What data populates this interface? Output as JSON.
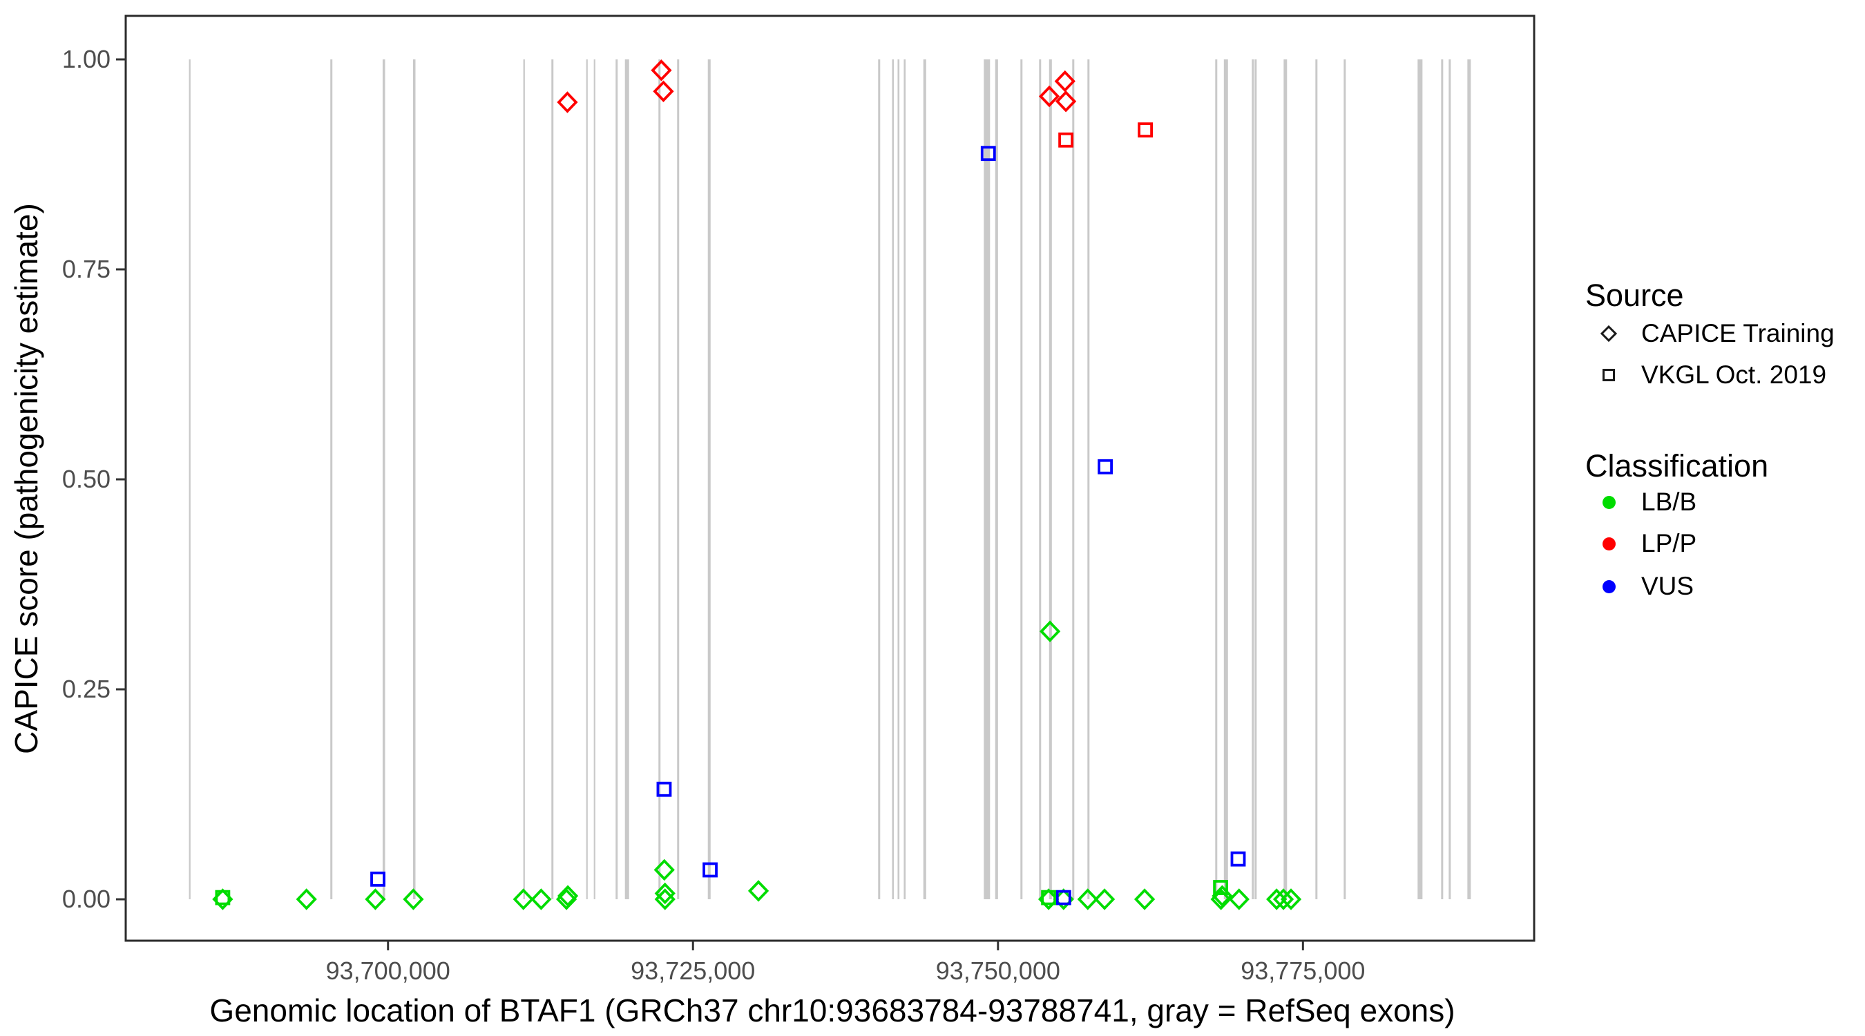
{
  "chart_data": {
    "type": "scatter",
    "title": "",
    "x_axis": {
      "label": "Genomic location of BTAF1 (GRCh37 chr10:93683784-93788741, gray = RefSeq exons)",
      "domain": [
        93678500,
        93793950
      ],
      "ticks": [
        {
          "value": 93700000,
          "label": "93,700,000"
        },
        {
          "value": 93725000,
          "label": "93,725,000"
        },
        {
          "value": 93750000,
          "label": "93,750,000"
        },
        {
          "value": 93775000,
          "label": "93,775,000"
        }
      ]
    },
    "y_axis": {
      "label": "CAPICE score (pathogenicity estimate)",
      "domain": [
        -0.0493,
        1.0518
      ],
      "ticks": [
        {
          "value": 0.0,
          "label": "0.00"
        },
        {
          "value": 0.25,
          "label": "0.25"
        },
        {
          "value": 0.5,
          "label": "0.50"
        },
        {
          "value": 0.75,
          "label": "0.75"
        },
        {
          "value": 1.0,
          "label": "1.00"
        }
      ]
    },
    "legend": {
      "source": {
        "title": "Source",
        "items": [
          {
            "label": "CAPICE Training",
            "shape": "diamond"
          },
          {
            "label": "VKGL Oct. 2019",
            "shape": "square"
          }
        ]
      },
      "classification": {
        "title": "Classification",
        "items": [
          {
            "label": "LB/B",
            "color": "#00DC00"
          },
          {
            "label": "LP/P",
            "color": "#FF0000"
          },
          {
            "label": "VUS",
            "color": "#0000FF"
          }
        ]
      }
    },
    "colors": {
      "exon": "#C9C9C9",
      "panel_border": "#2B2B2B",
      "tick": "#333333",
      "tick_label": "#4D4D4D",
      "legend_glyph": "#1A1A1A"
    },
    "exons": [
      {
        "position": 93683749,
        "width_bp": 130
      },
      {
        "position": 93695357,
        "width_bp": 170
      },
      {
        "position": 93699660,
        "width_bp": 200
      },
      {
        "position": 93702152,
        "width_bp": 200
      },
      {
        "position": 93711155,
        "width_bp": 130
      },
      {
        "position": 93713477,
        "width_bp": 170
      },
      {
        "position": 93716308,
        "width_bp": 120
      },
      {
        "position": 93716931,
        "width_bp": 120
      },
      {
        "position": 93718743,
        "width_bp": 170
      },
      {
        "position": 93719592,
        "width_bp": 340
      },
      {
        "position": 93722254,
        "width_bp": 170
      },
      {
        "position": 93723782,
        "width_bp": 170
      },
      {
        "position": 93726330,
        "width_bp": 230
      },
      {
        "position": 93740260,
        "width_bp": 170
      },
      {
        "position": 93741393,
        "width_bp": 150
      },
      {
        "position": 93741846,
        "width_bp": 150
      },
      {
        "position": 93742355,
        "width_bp": 150
      },
      {
        "position": 93743997,
        "width_bp": 230
      },
      {
        "position": 93749094,
        "width_bp": 510
      },
      {
        "position": 93749887,
        "width_bp": 230
      },
      {
        "position": 93751925,
        "width_bp": 170
      },
      {
        "position": 93753454,
        "width_bp": 170
      },
      {
        "position": 93754303,
        "width_bp": 230
      },
      {
        "position": 93756172,
        "width_bp": 170
      },
      {
        "position": 93757418,
        "width_bp": 170
      },
      {
        "position": 93767893,
        "width_bp": 170
      },
      {
        "position": 93768686,
        "width_bp": 340
      },
      {
        "position": 93770894,
        "width_bp": 170
      },
      {
        "position": 93771121,
        "width_bp": 170
      },
      {
        "position": 93773556,
        "width_bp": 280
      },
      {
        "position": 93776104,
        "width_bp": 170
      },
      {
        "position": 93778425,
        "width_bp": 170
      },
      {
        "position": 93784598,
        "width_bp": 400
      },
      {
        "position": 93786410,
        "width_bp": 170
      },
      {
        "position": 93787033,
        "width_bp": 170
      },
      {
        "position": 93788618,
        "width_bp": 280
      }
    ],
    "points": [
      {
        "position": 93714706,
        "score": 0.949,
        "source": "CAPICE Training",
        "classification": "LP/P",
        "shape": "diamond"
      },
      {
        "position": 93722407,
        "score": 0.987,
        "source": "CAPICE Training",
        "classification": "LP/P",
        "shape": "diamond"
      },
      {
        "position": 93722577,
        "score": 0.962,
        "source": "CAPICE Training",
        "classification": "LP/P",
        "shape": "diamond"
      },
      {
        "position": 93754207,
        "score": 0.956,
        "source": "CAPICE Training",
        "classification": "LP/P",
        "shape": "diamond"
      },
      {
        "position": 93755492,
        "score": 0.974,
        "source": "CAPICE Training",
        "classification": "LP/P",
        "shape": "diamond"
      },
      {
        "position": 93755566,
        "score": 0.95,
        "source": "CAPICE Training",
        "classification": "LP/P",
        "shape": "diamond"
      },
      {
        "position": 93686449,
        "score": 0.0,
        "source": "CAPICE Training",
        "classification": "LB/B",
        "shape": "diamond"
      },
      {
        "position": 93693318,
        "score": 0.0,
        "source": "CAPICE Training",
        "classification": "LB/B",
        "shape": "diamond"
      },
      {
        "position": 93698964,
        "score": 0.0,
        "source": "CAPICE Training",
        "classification": "LB/B",
        "shape": "diamond"
      },
      {
        "position": 93702078,
        "score": 0.0,
        "source": "CAPICE Training",
        "classification": "LB/B",
        "shape": "diamond"
      },
      {
        "position": 93711098,
        "score": 0.0,
        "source": "CAPICE Training",
        "classification": "LB/B",
        "shape": "diamond"
      },
      {
        "position": 93712553,
        "score": 0.0,
        "source": "CAPICE Training",
        "classification": "LB/B",
        "shape": "diamond"
      },
      {
        "position": 93714630,
        "score": 0.0,
        "source": "CAPICE Training",
        "classification": "LB/B",
        "shape": "diamond"
      },
      {
        "position": 93714740,
        "score": 0.004,
        "source": "CAPICE Training",
        "classification": "LB/B",
        "shape": "diamond"
      },
      {
        "position": 93722650,
        "score": 0.035,
        "source": "CAPICE Training",
        "classification": "LB/B",
        "shape": "diamond"
      },
      {
        "position": 93722707,
        "score": 0.007,
        "source": "CAPICE Training",
        "classification": "LB/B",
        "shape": "diamond"
      },
      {
        "position": 93722707,
        "score": 0.0,
        "source": "CAPICE Training",
        "classification": "LB/B",
        "shape": "diamond"
      },
      {
        "position": 93730368,
        "score": 0.01,
        "source": "CAPICE Training",
        "classification": "LB/B",
        "shape": "diamond"
      },
      {
        "position": 93754151,
        "score": 0.0,
        "source": "CAPICE Training",
        "classification": "LB/B",
        "shape": "diamond"
      },
      {
        "position": 93754264,
        "score": 0.319,
        "source": "CAPICE Training",
        "classification": "LB/B",
        "shape": "diamond"
      },
      {
        "position": 93755379,
        "score": 0.0,
        "source": "CAPICE Training",
        "classification": "LB/B",
        "shape": "diamond"
      },
      {
        "position": 93757361,
        "score": 0.0,
        "source": "CAPICE Training",
        "classification": "LB/B",
        "shape": "diamond"
      },
      {
        "position": 93758737,
        "score": 0.0,
        "source": "CAPICE Training",
        "classification": "LB/B",
        "shape": "diamond"
      },
      {
        "position": 93762021,
        "score": 0.0,
        "source": "CAPICE Training",
        "classification": "LB/B",
        "shape": "diamond"
      },
      {
        "position": 93768280,
        "score": 0.0,
        "source": "CAPICE Training",
        "classification": "LB/B",
        "shape": "diamond"
      },
      {
        "position": 93768380,
        "score": 0.004,
        "source": "CAPICE Training",
        "classification": "LB/B",
        "shape": "diamond"
      },
      {
        "position": 93769762,
        "score": 0.0,
        "source": "CAPICE Training",
        "classification": "LB/B",
        "shape": "diamond"
      },
      {
        "position": 93772840,
        "score": 0.0,
        "source": "CAPICE Training",
        "classification": "LB/B",
        "shape": "diamond"
      },
      {
        "position": 93773400,
        "score": 0.0,
        "source": "CAPICE Training",
        "classification": "LB/B",
        "shape": "diamond"
      },
      {
        "position": 93774020,
        "score": 0.0,
        "source": "CAPICE Training",
        "classification": "LB/B",
        "shape": "diamond"
      },
      {
        "position": 93755566,
        "score": 0.904,
        "source": "VKGL Oct. 2019",
        "classification": "LP/P",
        "shape": "square"
      },
      {
        "position": 93762078,
        "score": 0.916,
        "source": "VKGL Oct. 2019",
        "classification": "LP/P",
        "shape": "square"
      },
      {
        "position": 93699168,
        "score": 0.024,
        "source": "VKGL Oct. 2019",
        "classification": "VUS",
        "shape": "square"
      },
      {
        "position": 93722633,
        "score": 0.131,
        "source": "VKGL Oct. 2019",
        "classification": "VUS",
        "shape": "square"
      },
      {
        "position": 93726404,
        "score": 0.035,
        "source": "VKGL Oct. 2019",
        "classification": "VUS",
        "shape": "square"
      },
      {
        "position": 93749207,
        "score": 0.888,
        "source": "VKGL Oct. 2019",
        "classification": "VUS",
        "shape": "square"
      },
      {
        "position": 93755379,
        "score": 0.002,
        "source": "VKGL Oct. 2019",
        "classification": "VUS",
        "shape": "square"
      },
      {
        "position": 93758794,
        "score": 0.515,
        "source": "VKGL Oct. 2019",
        "classification": "VUS",
        "shape": "square"
      },
      {
        "position": 93769688,
        "score": 0.048,
        "source": "VKGL Oct. 2019",
        "classification": "VUS",
        "shape": "square"
      },
      {
        "position": 93686449,
        "score": 0.002,
        "source": "VKGL Oct. 2019",
        "classification": "LB/B",
        "shape": "square"
      },
      {
        "position": 93754151,
        "score": 0.002,
        "source": "VKGL Oct. 2019",
        "classification": "LB/B",
        "shape": "square"
      },
      {
        "position": 93768250,
        "score": 0.014,
        "source": "VKGL Oct. 2019",
        "classification": "LB/B",
        "shape": "square"
      }
    ]
  }
}
